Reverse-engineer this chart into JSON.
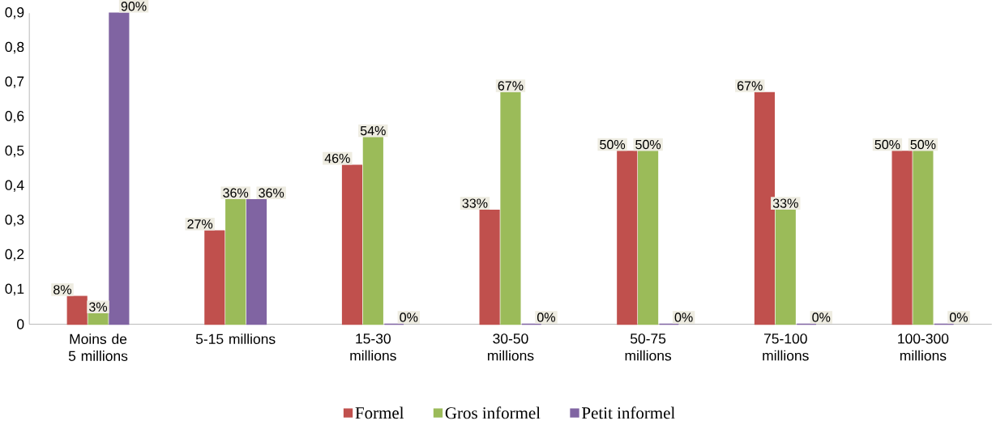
{
  "chart_data": {
    "type": "bar",
    "categories": [
      "Moins de 5 millions",
      "5-15 millions",
      "15-30 millions",
      "30-50 millions",
      "50-75 millions",
      "75-100 millions",
      "100-300 millions"
    ],
    "series": [
      {
        "name": "Formel",
        "color": "#c0504d",
        "values": [
          0.08,
          0.27,
          0.46,
          0.33,
          0.5,
          0.67,
          0.5
        ],
        "value_labels": [
          "8%",
          "27%",
          "46%",
          "33%",
          "50%",
          "67%",
          "50%"
        ]
      },
      {
        "name": "Gros informel",
        "color": "#9bbb59",
        "values": [
          0.03,
          0.36,
          0.54,
          0.67,
          0.5,
          0.33,
          0.5
        ],
        "value_labels": [
          "3%",
          "36%",
          "54%",
          "67%",
          "50%",
          "33%",
          "50%"
        ]
      },
      {
        "name": "Petit informel",
        "color": "#8064a2",
        "values": [
          0.9,
          0.36,
          0,
          0,
          0,
          0,
          0
        ],
        "value_labels": [
          "90%",
          "36%",
          "0%",
          "0%",
          "0%",
          "0%",
          "0%"
        ]
      }
    ],
    "ylim": [
      0,
      0.9
    ],
    "yticks": [
      0,
      {
        "value": 0.1,
        "label": "0,1"
      },
      {
        "value": 0.2,
        "label": "0,2"
      },
      {
        "value": 0.3,
        "label": "0,3"
      },
      {
        "value": 0.4,
        "label": "0,4"
      },
      {
        "value": 0.5,
        "label": "0,5"
      },
      {
        "value": 0.6,
        "label": "0,6"
      },
      {
        "value": 0.7,
        "label": "0,7"
      },
      {
        "value": 0.8,
        "label": "0,8"
      },
      {
        "value": 0.9,
        "label": "0,9"
      }
    ],
    "legend": "bottom"
  }
}
